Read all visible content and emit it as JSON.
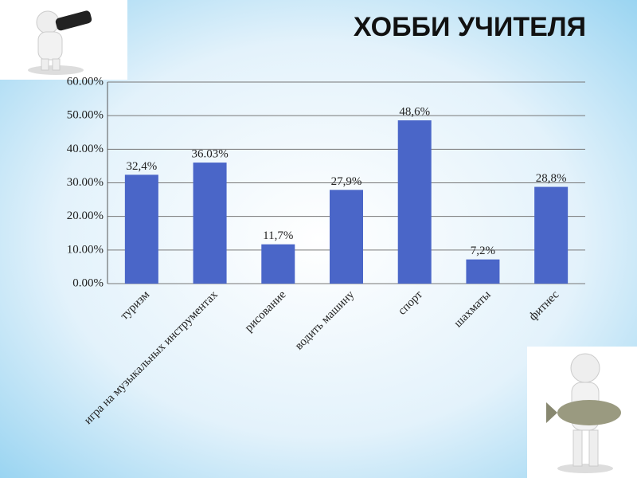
{
  "chart_data": {
    "type": "bar",
    "title": "ХОББИ УЧИТЕЛЯ",
    "categories": [
      "туризм",
      "игра на музыкальных  инструментах",
      "рисование",
      "водить машину",
      "спорт",
      "шахматы",
      "фитнес"
    ],
    "values": [
      32.4,
      36.03,
      11.7,
      27.9,
      48.6,
      7.2,
      28.8
    ],
    "value_labels": [
      "32,4%",
      "36.03%",
      "11,7%",
      "27,9%",
      "48,6%",
      "7,2%",
      "28,8%"
    ],
    "color": "#4a66c8",
    "ylim": [
      0,
      60
    ],
    "yticks": [
      {
        "value": 0,
        "label": "0.00%"
      },
      {
        "value": 10,
        "label": "10.00%"
      },
      {
        "value": 20,
        "label": "20.00%"
      },
      {
        "value": 30,
        "label": "30.00%"
      },
      {
        "value": 40,
        "label": "40.00%"
      },
      {
        "value": 50,
        "label": "50.00%"
      },
      {
        "value": 60,
        "label": "60.00%"
      }
    ],
    "grid": true
  }
}
